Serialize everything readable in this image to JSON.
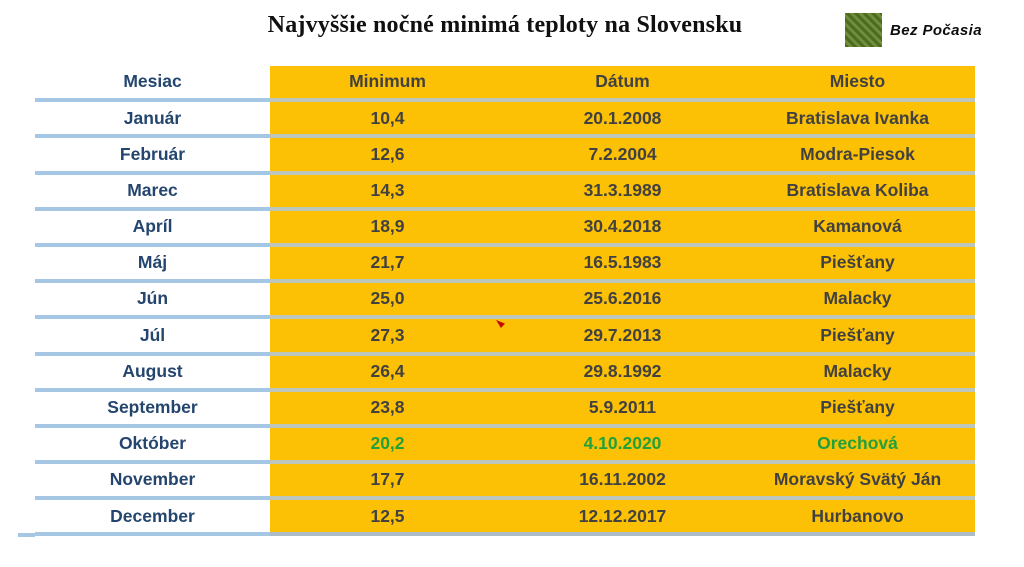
{
  "title": "Najvyššie nočné minimá teploty na Slovensku",
  "logo": {
    "text": "Bez Počasia",
    "image": "green-meadow-photo-square"
  },
  "chart_data": {
    "type": "table",
    "title": "Najvyššie nočné minimá teploty na Slovensku",
    "columns": [
      "Mesiac",
      "Minimum",
      "Dátum",
      "Miesto"
    ],
    "rows": [
      {
        "month": "Január",
        "minimum": "10,4",
        "date": "20.1.2008",
        "place": "Bratislava Ivanka",
        "highlight": false
      },
      {
        "month": "Február",
        "minimum": "12,6",
        "date": "7.2.2004",
        "place": "Modra-Piesok",
        "highlight": false
      },
      {
        "month": "Marec",
        "minimum": "14,3",
        "date": "31.3.1989",
        "place": "Bratislava Koliba",
        "highlight": false
      },
      {
        "month": "Apríl",
        "minimum": "18,9",
        "date": "30.4.2018",
        "place": "Kamanová",
        "highlight": false
      },
      {
        "month": "Máj",
        "minimum": "21,7",
        "date": "16.5.1983",
        "place": "Piešťany",
        "highlight": false
      },
      {
        "month": "Jún",
        "minimum": "25,0",
        "date": "25.6.2016",
        "place": "Malacky",
        "highlight": false
      },
      {
        "month": "Júl",
        "minimum": "27,3",
        "date": "29.7.2013",
        "place": "Piešťany",
        "highlight": false
      },
      {
        "month": "August",
        "minimum": "26,4",
        "date": "29.8.1992",
        "place": "Malacky",
        "highlight": false
      },
      {
        "month": "September",
        "minimum": "23,8",
        "date": "5.9.2011",
        "place": "Piešťany",
        "highlight": false
      },
      {
        "month": "Október",
        "minimum": "20,2",
        "date": "4.10.2020",
        "place": "Orechová",
        "highlight": true
      },
      {
        "month": "November",
        "minimum": "17,7",
        "date": "16.11.2002",
        "place": "Moravský Svätý Ján",
        "highlight": false
      },
      {
        "month": "December",
        "minimum": "12,5",
        "date": "12.12.2017",
        "place": "Hurbanovo",
        "highlight": false
      }
    ]
  },
  "colors": {
    "orange": "#FCC004",
    "month_text": "#24466E",
    "cell_text": "#414141",
    "highlight_green": "#22A03C",
    "line_blue": "#A5C7E3",
    "line_gray": "#BDC6BB",
    "title_color": "#101010",
    "marker_red": "#C00C0C"
  }
}
